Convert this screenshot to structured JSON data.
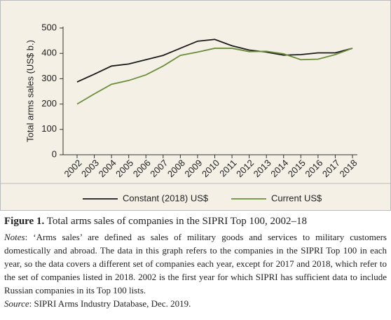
{
  "chart_data": {
    "type": "line",
    "y_label": "Total arms sales (US$ b.)",
    "categories": [
      "2002",
      "2003",
      "2004",
      "2005",
      "2006",
      "2007",
      "2008",
      "2009",
      "2010",
      "2011",
      "2012",
      "2013",
      "2014",
      "2015",
      "2016",
      "2017",
      "2018"
    ],
    "series": [
      {
        "name": "Constant (2018) US$",
        "color": "#1a1a1a",
        "values": [
          287,
          318,
          350,
          358,
          375,
          392,
          420,
          448,
          455,
          430,
          413,
          405,
          393,
          395,
          402,
          402,
          420
        ]
      },
      {
        "name": "Current US$",
        "color": "#6b8e3a",
        "values": [
          200,
          240,
          278,
          293,
          315,
          350,
          392,
          405,
          420,
          420,
          407,
          408,
          398,
          375,
          377,
          395,
          420
        ]
      }
    ],
    "ylim": [
      0,
      500
    ],
    "yticks": [
      0,
      100,
      200,
      300,
      400,
      500
    ],
    "grid": false
  },
  "caption": {
    "label": "Figure 1.",
    "title": "Total arms sales of companies in the SIPRI Top 100, 2002–18",
    "notes_label": "Notes",
    "notes": ": ‘Arms sales’ are defined as sales of military goods and services to military customers domestically and abroad. The data in this graph refers to the companies in the SIPRI Top 100 in each year, so the data covers a different set of companies each year, except for 2017 and 2018, which refer to the set of companies listed in 2018. 2002 is the first year for which SIPRI has sufficient data to include Russian companies in its Top 100 lists.",
    "source_label": "Source",
    "source": ": SIPRI Arms Industry Database, Dec. 2019."
  }
}
